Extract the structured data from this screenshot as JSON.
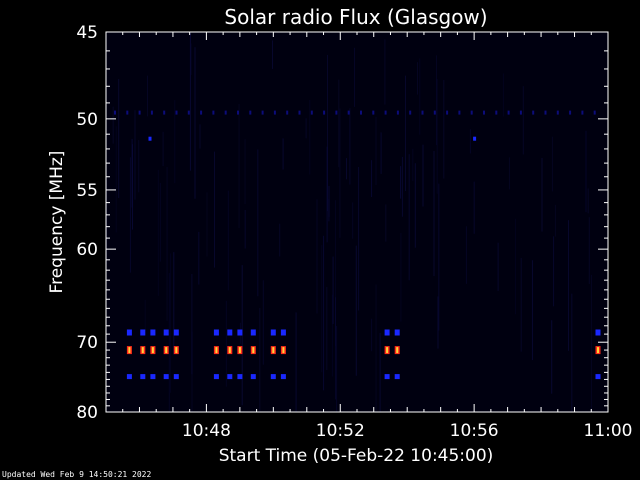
{
  "chart_data": {
    "type": "heatmap",
    "title": "Solar radio Flux (Glasgow)",
    "xlabel": "Start Time (05-Feb-22 10:45:00)",
    "ylabel": "Frequency [MHz]",
    "x_tick_labels": [
      "10:48",
      "10:52",
      "10:56",
      "11:00"
    ],
    "x_tick_minutes": [
      3,
      7,
      11,
      15
    ],
    "xlim_minutes": [
      0,
      15
    ],
    "y_tick_values": [
      45,
      50,
      55,
      60,
      70,
      80
    ],
    "y_tick_labels": [
      "45",
      "50",
      "55",
      "60",
      "70",
      "80"
    ],
    "ylim": [
      45,
      80
    ],
    "y_scale": "reciprocal",
    "background_color": "#000010",
    "colors": {
      "intense": "#ff2a1a",
      "core": "#ffd23a",
      "band": "#1a28ff",
      "faint": "#0c0c7a",
      "axis": "#ffffff"
    },
    "bursts_minutes": [
      0.7,
      1.1,
      1.4,
      1.8,
      2.1,
      3.3,
      3.7,
      4.0,
      4.4,
      5.0,
      5.3,
      8.4,
      8.7,
      14.7
    ],
    "burst_frequencies_mhz": [
      68.8,
      71.0,
      74.6
    ],
    "interference_line_mhz": 49.6,
    "interference_dots_minutes": [
      1.3,
      11.0
    ]
  },
  "footer": {
    "updated": "Updated Wed Feb  9 14:50:21 2022"
  }
}
